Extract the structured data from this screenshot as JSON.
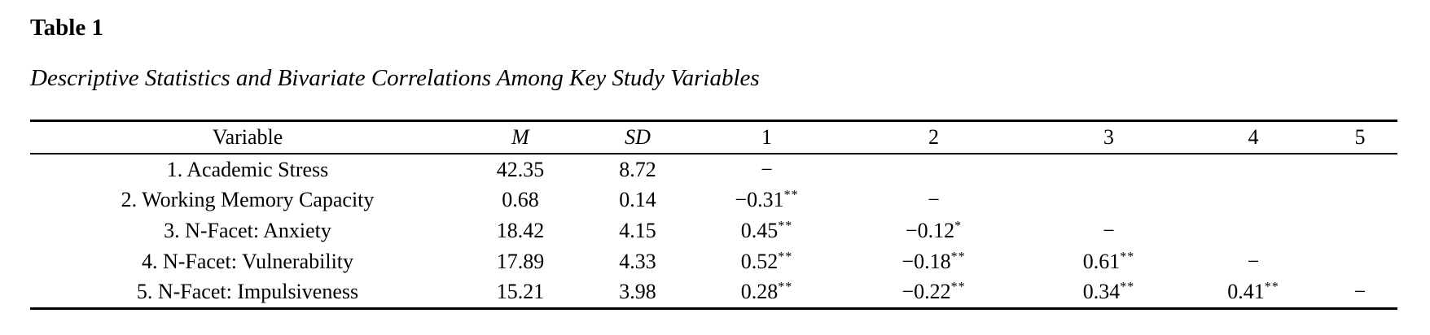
{
  "title": "Table 1",
  "caption": "Descriptive Statistics and Bivariate Correlations Among Key Study Variables",
  "colors": {
    "text": "#000000",
    "rule": "#000000",
    "background": "#ffffff"
  },
  "table": {
    "headers": [
      {
        "label": "Variable",
        "style": "plain"
      },
      {
        "label": "M",
        "style": "bold-italic"
      },
      {
        "label": "SD",
        "style": "bold-italic"
      },
      {
        "label": "1",
        "style": "bold"
      },
      {
        "label": "2",
        "style": "bold"
      },
      {
        "label": "3",
        "style": "bold"
      },
      {
        "label": "4",
        "style": "bold"
      },
      {
        "label": "5",
        "style": "bold"
      }
    ],
    "rows": [
      {
        "cells": [
          {
            "text": "1. Academic Stress"
          },
          {
            "text": "42.35"
          },
          {
            "text": "8.72"
          },
          {
            "text": "−"
          },
          {
            "text": ""
          },
          {
            "text": ""
          },
          {
            "text": ""
          },
          {
            "text": ""
          }
        ]
      },
      {
        "cells": [
          {
            "text": "2. Working Memory Capacity"
          },
          {
            "text": "0.68"
          },
          {
            "text": "0.14"
          },
          {
            "text": "−0.31",
            "sup": "**"
          },
          {
            "text": "−"
          },
          {
            "text": ""
          },
          {
            "text": ""
          },
          {
            "text": ""
          }
        ]
      },
      {
        "cells": [
          {
            "text": "3. N-Facet: Anxiety"
          },
          {
            "text": "18.42"
          },
          {
            "text": "4.15"
          },
          {
            "text": "0.45",
            "sup": "**"
          },
          {
            "text": "−0.12",
            "sup": "*"
          },
          {
            "text": "−"
          },
          {
            "text": ""
          },
          {
            "text": ""
          }
        ]
      },
      {
        "cells": [
          {
            "text": "4. N-Facet: Vulnerability"
          },
          {
            "text": "17.89"
          },
          {
            "text": "4.33"
          },
          {
            "text": "0.52",
            "sup": "**"
          },
          {
            "text": "−0.18",
            "sup": "**"
          },
          {
            "text": "0.61",
            "sup": "**"
          },
          {
            "text": "−"
          },
          {
            "text": ""
          }
        ]
      },
      {
        "cells": [
          {
            "text": "5. N-Facet: Impulsiveness"
          },
          {
            "text": "15.21"
          },
          {
            "text": "3.98"
          },
          {
            "text": "0.28",
            "sup": "**"
          },
          {
            "text": "−0.22",
            "sup": "**"
          },
          {
            "text": "0.34",
            "sup": "**"
          },
          {
            "text": "0.41",
            "sup": "**"
          },
          {
            "text": "−"
          }
        ]
      }
    ]
  }
}
